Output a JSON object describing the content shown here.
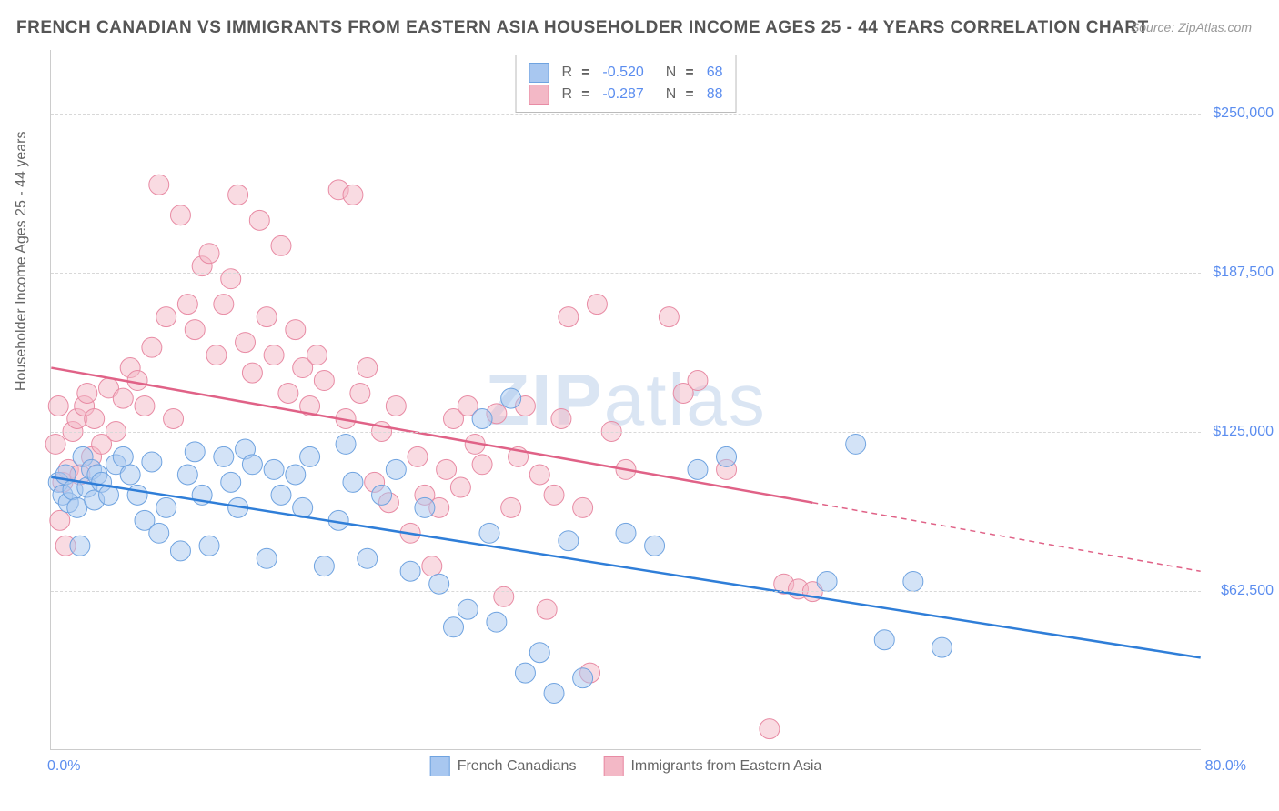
{
  "title": "FRENCH CANADIAN VS IMMIGRANTS FROM EASTERN ASIA HOUSEHOLDER INCOME AGES 25 - 44 YEARS CORRELATION CHART",
  "source": "Source: ZipAtlas.com",
  "ylabel": "Householder Income Ages 25 - 44 years",
  "watermark_a": "ZIP",
  "watermark_b": "atlas",
  "chart": {
    "type": "scatter",
    "xlim": [
      0,
      80
    ],
    "ylim": [
      0,
      275000
    ],
    "xtick_labels": [
      "0.0%",
      "80.0%"
    ],
    "ytick_values": [
      62500,
      125000,
      187500,
      250000
    ],
    "ytick_labels": [
      "$62,500",
      "$125,000",
      "$187,500",
      "$250,000"
    ],
    "grid_color": "#d8d8d8",
    "background_color": "#ffffff",
    "marker_radius": 11,
    "marker_opacity": 0.5,
    "line_width": 2.5
  },
  "series": [
    {
      "name": "French Canadians",
      "color_fill": "#a8c7f0",
      "color_stroke": "#6fa3e0",
      "line_color": "#2f7ed8",
      "r_value": "-0.520",
      "n_value": "68",
      "trend": {
        "x1": 0,
        "y1": 107000,
        "x2": 80,
        "y2": 36000,
        "solid_until_x": 80
      },
      "points": [
        [
          0.5,
          105000
        ],
        [
          0.8,
          100000
        ],
        [
          1.0,
          108000
        ],
        [
          1.2,
          97000
        ],
        [
          1.5,
          102000
        ],
        [
          1.8,
          95000
        ],
        [
          2.0,
          80000
        ],
        [
          2.2,
          115000
        ],
        [
          2.5,
          103000
        ],
        [
          2.8,
          110000
        ],
        [
          3.0,
          98000
        ],
        [
          3.2,
          108000
        ],
        [
          3.5,
          105000
        ],
        [
          4.0,
          100000
        ],
        [
          4.5,
          112000
        ],
        [
          5.0,
          115000
        ],
        [
          5.5,
          108000
        ],
        [
          6.0,
          100000
        ],
        [
          6.5,
          90000
        ],
        [
          7.0,
          113000
        ],
        [
          7.5,
          85000
        ],
        [
          8.0,
          95000
        ],
        [
          9.0,
          78000
        ],
        [
          9.5,
          108000
        ],
        [
          10.0,
          117000
        ],
        [
          10.5,
          100000
        ],
        [
          11.0,
          80000
        ],
        [
          12.0,
          115000
        ],
        [
          12.5,
          105000
        ],
        [
          13.0,
          95000
        ],
        [
          13.5,
          118000
        ],
        [
          14.0,
          112000
        ],
        [
          15.0,
          75000
        ],
        [
          15.5,
          110000
        ],
        [
          16.0,
          100000
        ],
        [
          17.0,
          108000
        ],
        [
          17.5,
          95000
        ],
        [
          18.0,
          115000
        ],
        [
          19.0,
          72000
        ],
        [
          20.0,
          90000
        ],
        [
          20.5,
          120000
        ],
        [
          21.0,
          105000
        ],
        [
          22.0,
          75000
        ],
        [
          23.0,
          100000
        ],
        [
          24.0,
          110000
        ],
        [
          25.0,
          70000
        ],
        [
          26.0,
          95000
        ],
        [
          27.0,
          65000
        ],
        [
          28.0,
          48000
        ],
        [
          29.0,
          55000
        ],
        [
          30.0,
          130000
        ],
        [
          30.5,
          85000
        ],
        [
          31.0,
          50000
        ],
        [
          32.0,
          138000
        ],
        [
          33.0,
          30000
        ],
        [
          34.0,
          38000
        ],
        [
          35.0,
          22000
        ],
        [
          36.0,
          82000
        ],
        [
          37.0,
          28000
        ],
        [
          40.0,
          85000
        ],
        [
          42.0,
          80000
        ],
        [
          45.0,
          110000
        ],
        [
          47.0,
          115000
        ],
        [
          54.0,
          66000
        ],
        [
          56.0,
          120000
        ],
        [
          58.0,
          43000
        ],
        [
          60.0,
          66000
        ],
        [
          62.0,
          40000
        ]
      ]
    },
    {
      "name": "Immigrants from Eastern Asia",
      "color_fill": "#f3b8c6",
      "color_stroke": "#e88ba4",
      "line_color": "#e06287",
      "r_value": "-0.287",
      "n_value": "88",
      "trend": {
        "x1": 0,
        "y1": 150000,
        "x2": 80,
        "y2": 70000,
        "solid_until_x": 53
      },
      "points": [
        [
          0.3,
          120000
        ],
        [
          0.5,
          135000
        ],
        [
          0.6,
          90000
        ],
        [
          0.8,
          105000
        ],
        [
          1.0,
          80000
        ],
        [
          1.2,
          110000
        ],
        [
          1.5,
          125000
        ],
        [
          1.8,
          130000
        ],
        [
          2.0,
          108000
        ],
        [
          2.3,
          135000
        ],
        [
          2.5,
          140000
        ],
        [
          2.8,
          115000
        ],
        [
          3.0,
          130000
        ],
        [
          3.5,
          120000
        ],
        [
          4.0,
          142000
        ],
        [
          4.5,
          125000
        ],
        [
          5.0,
          138000
        ],
        [
          5.5,
          150000
        ],
        [
          6.0,
          145000
        ],
        [
          6.5,
          135000
        ],
        [
          7.0,
          158000
        ],
        [
          7.5,
          222000
        ],
        [
          8.0,
          170000
        ],
        [
          8.5,
          130000
        ],
        [
          9.0,
          210000
        ],
        [
          9.5,
          175000
        ],
        [
          10.0,
          165000
        ],
        [
          10.5,
          190000
        ],
        [
          11.0,
          195000
        ],
        [
          11.5,
          155000
        ],
        [
          12.0,
          175000
        ],
        [
          12.5,
          185000
        ],
        [
          13.0,
          218000
        ],
        [
          13.5,
          160000
        ],
        [
          14.0,
          148000
        ],
        [
          14.5,
          208000
        ],
        [
          15.0,
          170000
        ],
        [
          15.5,
          155000
        ],
        [
          16.0,
          198000
        ],
        [
          16.5,
          140000
        ],
        [
          17.0,
          165000
        ],
        [
          17.5,
          150000
        ],
        [
          18.0,
          135000
        ],
        [
          18.5,
          155000
        ],
        [
          19.0,
          145000
        ],
        [
          20.0,
          220000
        ],
        [
          20.5,
          130000
        ],
        [
          21.0,
          218000
        ],
        [
          21.5,
          140000
        ],
        [
          22.0,
          150000
        ],
        [
          22.5,
          105000
        ],
        [
          23.0,
          125000
        ],
        [
          23.5,
          97000
        ],
        [
          24.0,
          135000
        ],
        [
          25.0,
          85000
        ],
        [
          25.5,
          115000
        ],
        [
          26.0,
          100000
        ],
        [
          26.5,
          72000
        ],
        [
          27.0,
          95000
        ],
        [
          27.5,
          110000
        ],
        [
          28.0,
          130000
        ],
        [
          28.5,
          103000
        ],
        [
          29.0,
          135000
        ],
        [
          29.5,
          120000
        ],
        [
          30.0,
          112000
        ],
        [
          31.0,
          132000
        ],
        [
          31.5,
          60000
        ],
        [
          32.0,
          95000
        ],
        [
          32.5,
          115000
        ],
        [
          33.0,
          135000
        ],
        [
          34.0,
          108000
        ],
        [
          34.5,
          55000
        ],
        [
          35.0,
          100000
        ],
        [
          35.5,
          130000
        ],
        [
          36.0,
          170000
        ],
        [
          37.0,
          95000
        ],
        [
          37.5,
          30000
        ],
        [
          38.0,
          175000
        ],
        [
          39.0,
          125000
        ],
        [
          40.0,
          110000
        ],
        [
          43.0,
          170000
        ],
        [
          44.0,
          140000
        ],
        [
          45.0,
          145000
        ],
        [
          47.0,
          110000
        ],
        [
          50.0,
          8000
        ],
        [
          51.0,
          65000
        ],
        [
          52.0,
          63000
        ],
        [
          53.0,
          62000
        ]
      ]
    }
  ],
  "legend_bottom": [
    {
      "label": "French Canadians",
      "fill": "#a8c7f0",
      "stroke": "#6fa3e0"
    },
    {
      "label": "Immigrants from Eastern Asia",
      "fill": "#f3b8c6",
      "stroke": "#e88ba4"
    }
  ],
  "legend_text": {
    "r": "R",
    "n": "N",
    "eq": "="
  }
}
